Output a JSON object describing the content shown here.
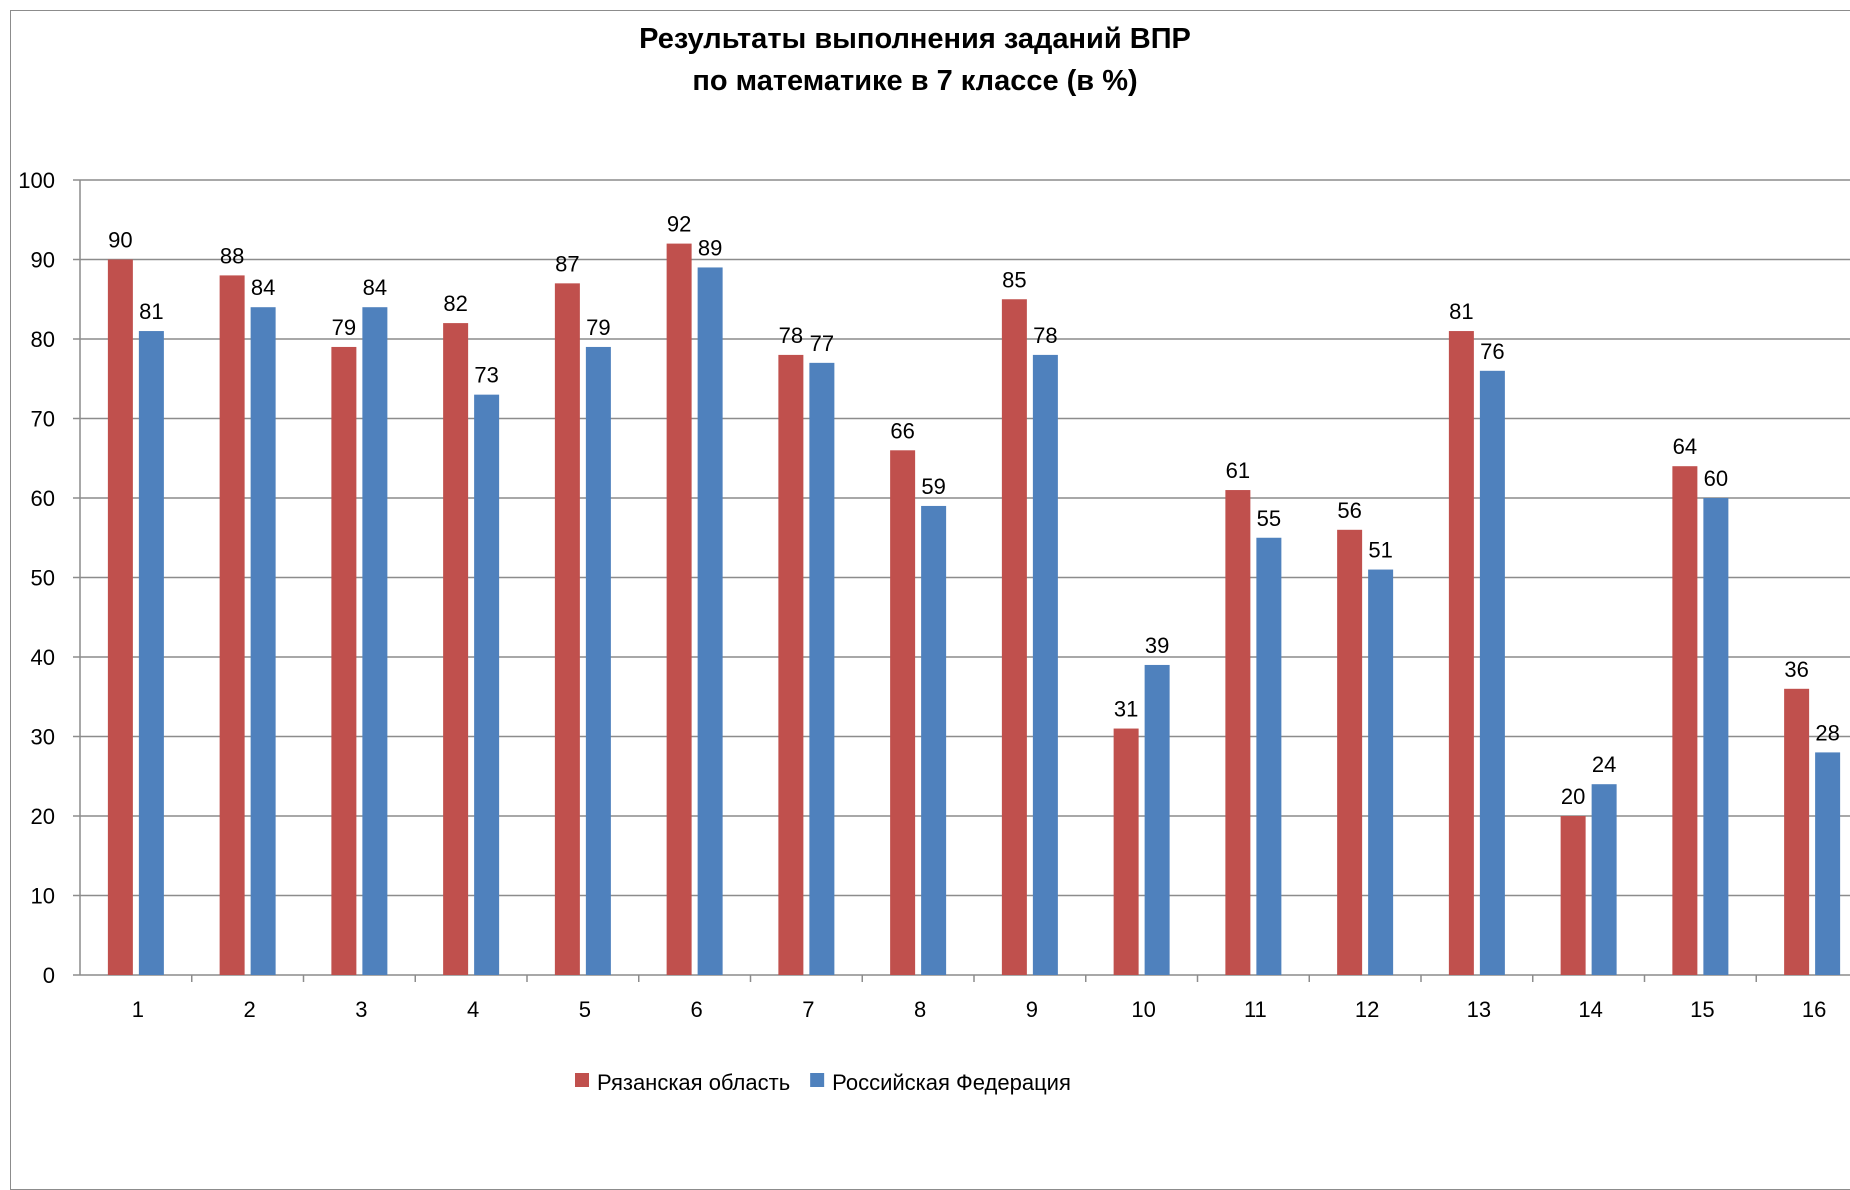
{
  "chart_data": {
    "type": "bar",
    "title_lines": [
      "Результаты выполнения заданий ВПР",
      "по математике в 7 классе (в %)"
    ],
    "xlabel": "",
    "ylabel": "",
    "ylim": [
      0,
      100
    ],
    "y_ticks": [
      0,
      10,
      20,
      30,
      40,
      50,
      60,
      70,
      80,
      90,
      100
    ],
    "grid": true,
    "legend_position": "bottom",
    "categories": [
      "1",
      "2",
      "3",
      "4",
      "5",
      "6",
      "7",
      "8",
      "9",
      "10",
      "11",
      "12",
      "13",
      "14",
      "15",
      "16"
    ],
    "series": [
      {
        "name": "Рязанская область",
        "color": "#c0504d",
        "values": [
          90,
          88,
          79,
          82,
          87,
          92,
          78,
          66,
          85,
          31,
          61,
          56,
          81,
          20,
          64,
          36
        ]
      },
      {
        "name": "Российская Федерация",
        "color": "#4f81bd",
        "values": [
          81,
          84,
          84,
          73,
          79,
          89,
          77,
          59,
          78,
          39,
          55,
          51,
          76,
          24,
          60,
          28
        ]
      }
    ]
  }
}
